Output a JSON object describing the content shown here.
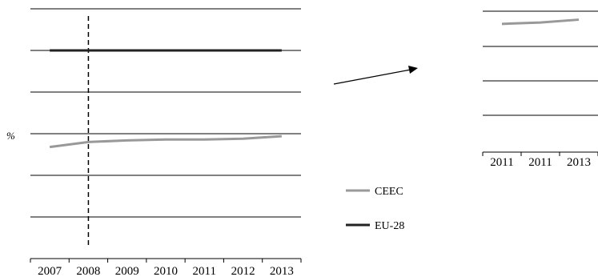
{
  "chart_data": [
    {
      "type": "line",
      "ylabel": "%",
      "categories": [
        "2007",
        "2008",
        "2009",
        "2010",
        "2011",
        "2012",
        "2013"
      ],
      "series": [
        {
          "name": "CEEC",
          "color": "#999999",
          "values": [
            42,
            45,
            46,
            46.5,
            46.5,
            47,
            48.5
          ]
        },
        {
          "name": "EU-28",
          "color": "#222222",
          "values": [
            100,
            100,
            100,
            100,
            100,
            100,
            100
          ]
        }
      ],
      "ylim": [
        -25,
        125
      ],
      "grid": true,
      "reference_line": {
        "x": "2008",
        "style": "dashed"
      }
    },
    {
      "type": "line",
      "categories": [
        "2011",
        "2011",
        "2013"
      ],
      "series": [
        {
          "name": "CEEC",
          "color": "#999999",
          "values": [
            91,
            92,
            94
          ]
        }
      ],
      "grid": true
    }
  ],
  "legend": [
    {
      "label": "CEEC",
      "color": "#999999"
    },
    {
      "label": "EU-28",
      "color": "#222222"
    }
  ],
  "arrow": {
    "meaning": "zoom-in pointer",
    "color": "#000000"
  }
}
